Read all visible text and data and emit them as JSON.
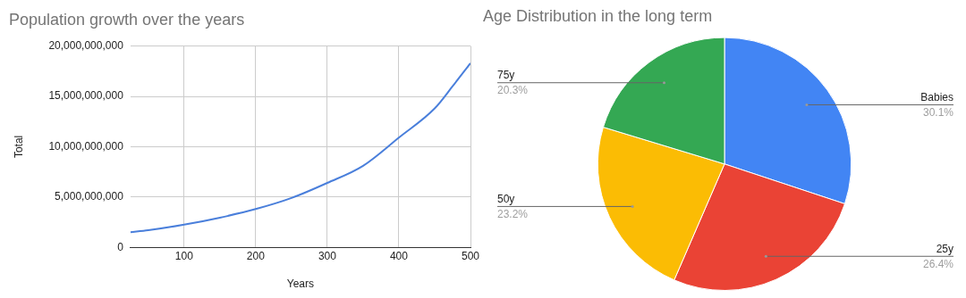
{
  "chart_data": [
    {
      "type": "line",
      "title": "Population growth over the years",
      "xlabel": "Years",
      "ylabel": "Total",
      "xlim": [
        25,
        500
      ],
      "xticks": [
        100,
        200,
        300,
        400,
        500
      ],
      "ylim": [
        0,
        20000000000
      ],
      "yticks": [
        {
          "value": 0,
          "label": "0"
        },
        {
          "value": 5000000000,
          "label": "5,000,000,000"
        },
        {
          "value": 10000000000,
          "label": "10,000,000,000"
        },
        {
          "value": 15000000000,
          "label": "15,000,000,000"
        },
        {
          "value": 20000000000,
          "label": "20,000,000,000"
        }
      ],
      "x": [
        25,
        50,
        100,
        150,
        200,
        250,
        300,
        350,
        400,
        450,
        475,
        500
      ],
      "series": [
        {
          "color": "#4a7fdb",
          "values": [
            1500000000,
            1700000000,
            2250000000,
            2950000000,
            3800000000,
            4900000000,
            6400000000,
            8100000000,
            10900000000,
            13800000000,
            16000000000,
            18300000000
          ]
        }
      ],
      "grid": true,
      "legend": false,
      "marker": "none",
      "line_style": "solid"
    },
    {
      "type": "pie",
      "title": "Age Distribution in the long term",
      "categories": [
        "Babies",
        "25y",
        "50y",
        "75y"
      ],
      "values": [
        30.1,
        26.4,
        23.2,
        20.3
      ],
      "colors": [
        "#4285f4",
        "#ea4335",
        "#fbbc04",
        "#34a853"
      ],
      "value_labels": [
        "30.1%",
        "26.4%",
        "23.2%",
        "20.3%"
      ],
      "legend": false
    }
  ]
}
